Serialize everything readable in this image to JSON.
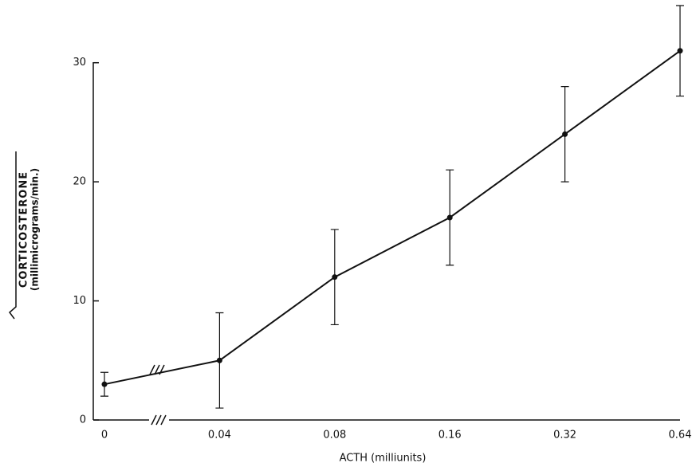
{
  "chart_data": {
    "type": "errorbar",
    "x_label": "ACTH (milliunits)",
    "y_label": [
      "CORTICOSTERONE",
      "(millimicrograms/min.)"
    ],
    "categories": [
      "0",
      "0.04",
      "0.08",
      "0.16",
      "0.32",
      "0.64"
    ],
    "values": [
      3,
      5,
      12,
      17,
      24,
      31
    ],
    "errors": [
      1,
      4,
      4,
      4,
      4,
      3.8
    ],
    "color": "#111111",
    "ylim": [
      0,
      35
    ],
    "yticks": [
      0,
      10,
      20,
      30
    ],
    "grid": false
  }
}
